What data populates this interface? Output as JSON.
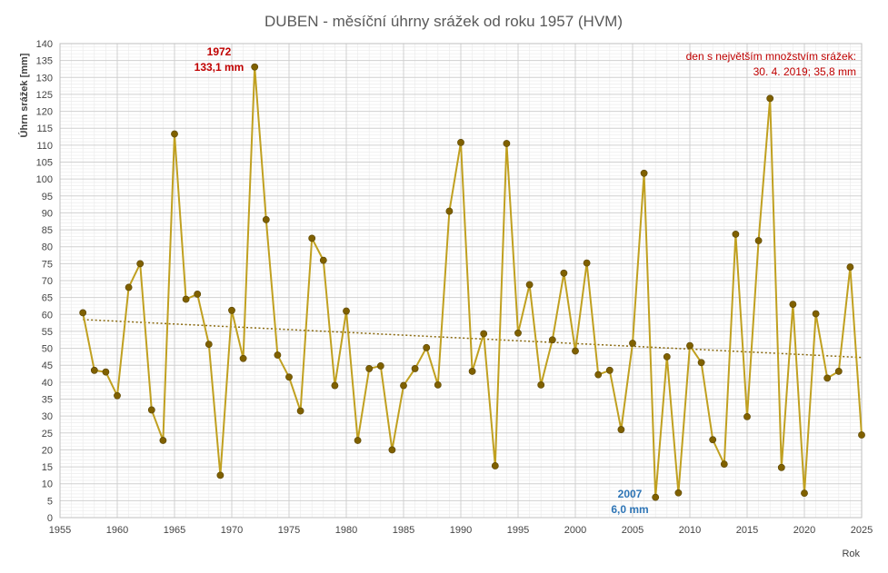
{
  "chart_data": {
    "type": "line",
    "title": "DUBEN - měsíční úhrny srážek od roku 1957 (HVM)",
    "xlabel": "Rok",
    "ylabel": "Úhrn srážek [mm]",
    "xlim": [
      1955,
      2025
    ],
    "ylim": [
      0,
      140
    ],
    "x_ticks": [
      "1955",
      "1960",
      "1965",
      "1970",
      "1975",
      "1980",
      "1985",
      "1990",
      "1995",
      "2000",
      "2005",
      "2010",
      "2015",
      "2020",
      "2025"
    ],
    "y_ticks": [
      "0",
      "5",
      "10",
      "15",
      "20",
      "25",
      "30",
      "35",
      "40",
      "45",
      "50",
      "55",
      "60",
      "65",
      "70",
      "75",
      "80",
      "85",
      "90",
      "95",
      "100",
      "105",
      "110",
      "115",
      "120",
      "125",
      "130",
      "135",
      "140"
    ],
    "grid": true,
    "colors": {
      "line": "#c0a020",
      "marker": "#7f6000",
      "trend": "#8a6a10",
      "grid_major": "#d0d0d0",
      "grid_minor": "#ececec"
    },
    "series": [
      {
        "x": [
          1957,
          1958,
          1959,
          1960,
          1961,
          1962,
          1963,
          1964,
          1965,
          1966,
          1967,
          1968,
          1969,
          1970,
          1971,
          1972,
          1973,
          1974,
          1975,
          1976,
          1977,
          1978,
          1979,
          1980,
          1981,
          1982,
          1983,
          1984,
          1985,
          1986,
          1987,
          1988,
          1989,
          1990,
          1991,
          1992,
          1993,
          1994,
          1995,
          1996,
          1997,
          1998,
          1999,
          2000,
          2001,
          2002,
          2003,
          2004,
          2005,
          2006,
          2007,
          2008,
          2009,
          2010,
          2011,
          2012,
          2013,
          2014,
          2015,
          2016,
          2017,
          2018,
          2019,
          2020,
          2021,
          2022,
          2023,
          2024,
          2025
        ],
        "values": [
          60.5,
          43.5,
          43.0,
          36.0,
          68.0,
          75.0,
          31.8,
          22.8,
          113.3,
          64.5,
          66.0,
          51.2,
          12.5,
          61.2,
          47.0,
          133.1,
          88.0,
          48.0,
          41.5,
          31.5,
          82.5,
          76.0,
          39.0,
          61.0,
          22.8,
          44.0,
          44.8,
          20.0,
          39.0,
          44.0,
          50.2,
          39.2,
          90.5,
          110.8,
          43.2,
          54.3,
          15.3,
          110.5,
          54.5,
          68.8,
          39.2,
          52.5,
          72.2,
          49.2,
          75.2,
          42.2,
          43.5,
          26.0,
          51.5,
          101.7,
          6.0,
          47.5,
          7.3,
          50.8,
          45.8,
          23.0,
          15.8,
          83.7,
          29.8,
          81.8,
          123.8,
          14.8,
          63.0,
          7.2,
          60.2,
          41.2,
          43.2,
          74.0,
          24.4
        ]
      },
      {
        "trend_from": [
          1957,
          58.5
        ],
        "trend_to": [
          2025,
          47.3
        ]
      }
    ],
    "annotations": {
      "max_year": "1972",
      "max_value": "133,1 mm",
      "min_year": "2007",
      "min_value": "6,0 mm",
      "note_line1": "den s největším množstvím srážek:",
      "note_line2": "30. 4. 2019;  35,8 mm"
    }
  }
}
